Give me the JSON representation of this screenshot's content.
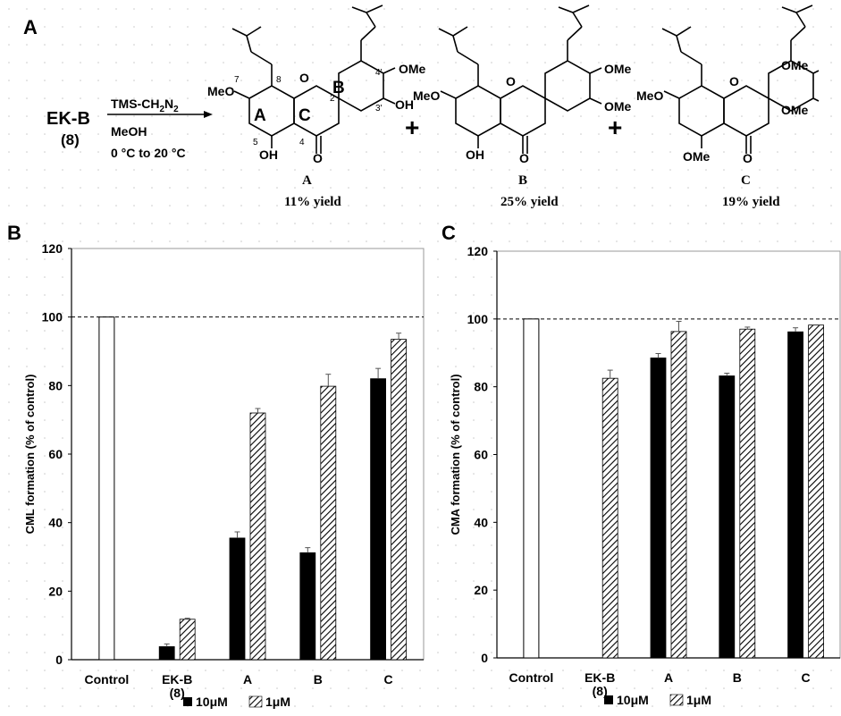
{
  "panels": {
    "a": "A",
    "b": "B",
    "c": "C"
  },
  "scheme": {
    "reactant_name": "EK-B",
    "reactant_number": "(8)",
    "reagent_1": "TMS-CH",
    "reagent_1_sub2": "2",
    "reagent_1_n": "N",
    "reagent_1_sub2b": "2",
    "reagent_2": "MeOH",
    "temperature": "0 °C to 20 °C",
    "plus": "+",
    "ring_labels": {
      "a": "A",
      "b": "B",
      "c": "C"
    },
    "atom_labels": {
      "meo": "MeO",
      "ome": "OMe",
      "oh": "OH",
      "o": "O"
    },
    "position_numbers": {
      "p7": "7",
      "p8": "8",
      "p2": "2",
      "p4p": "4'",
      "p3p": "3'",
      "p5": "5",
      "p4": "4"
    },
    "products": [
      {
        "label": "A",
        "yield": "11% yield"
      },
      {
        "label": "B",
        "yield": "25% yield"
      },
      {
        "label": "C",
        "yield": "19% yield"
      }
    ]
  },
  "chart_data": [
    {
      "type": "bar",
      "ylabel": "CML formation (% of control)",
      "categories": [
        "Control",
        "EK-B\n(8)",
        "A",
        "B",
        "C"
      ],
      "ylim": [
        0,
        120
      ],
      "yticks": [
        0,
        20,
        40,
        60,
        80,
        100,
        120
      ],
      "reference_line": 100,
      "control_value": 100,
      "series": [
        {
          "name": "10μM",
          "values": [
            null,
            3.8,
            35.5,
            31.2,
            82.0
          ],
          "errors": [
            null,
            0.8,
            1.8,
            1.5,
            3.0
          ]
        },
        {
          "name": "1μM",
          "values": [
            null,
            11.8,
            72.0,
            79.8,
            93.5
          ],
          "errors": [
            null,
            0.3,
            1.3,
            3.5,
            1.8
          ]
        }
      ],
      "legend": "bottom"
    },
    {
      "type": "bar",
      "ylabel": "CMA formation (% of control)",
      "categories": [
        "Control",
        "EK-B\n(8)",
        "A",
        "B",
        "C"
      ],
      "ylim": [
        0,
        120
      ],
      "yticks": [
        0,
        20,
        40,
        60,
        80,
        100,
        120
      ],
      "reference_line": 100,
      "control_value": 100,
      "series": [
        {
          "name": "10μM",
          "values": [
            null,
            0,
            88.5,
            83.2,
            96.2
          ],
          "errors": [
            null,
            0,
            1.3,
            0.8,
            1.2
          ]
        },
        {
          "name": "1μM",
          "values": [
            null,
            82.5,
            96.3,
            97.0,
            98.2
          ],
          "errors": [
            null,
            2.4,
            3.0,
            0.6,
            0
          ]
        }
      ],
      "legend": "bottom"
    }
  ]
}
